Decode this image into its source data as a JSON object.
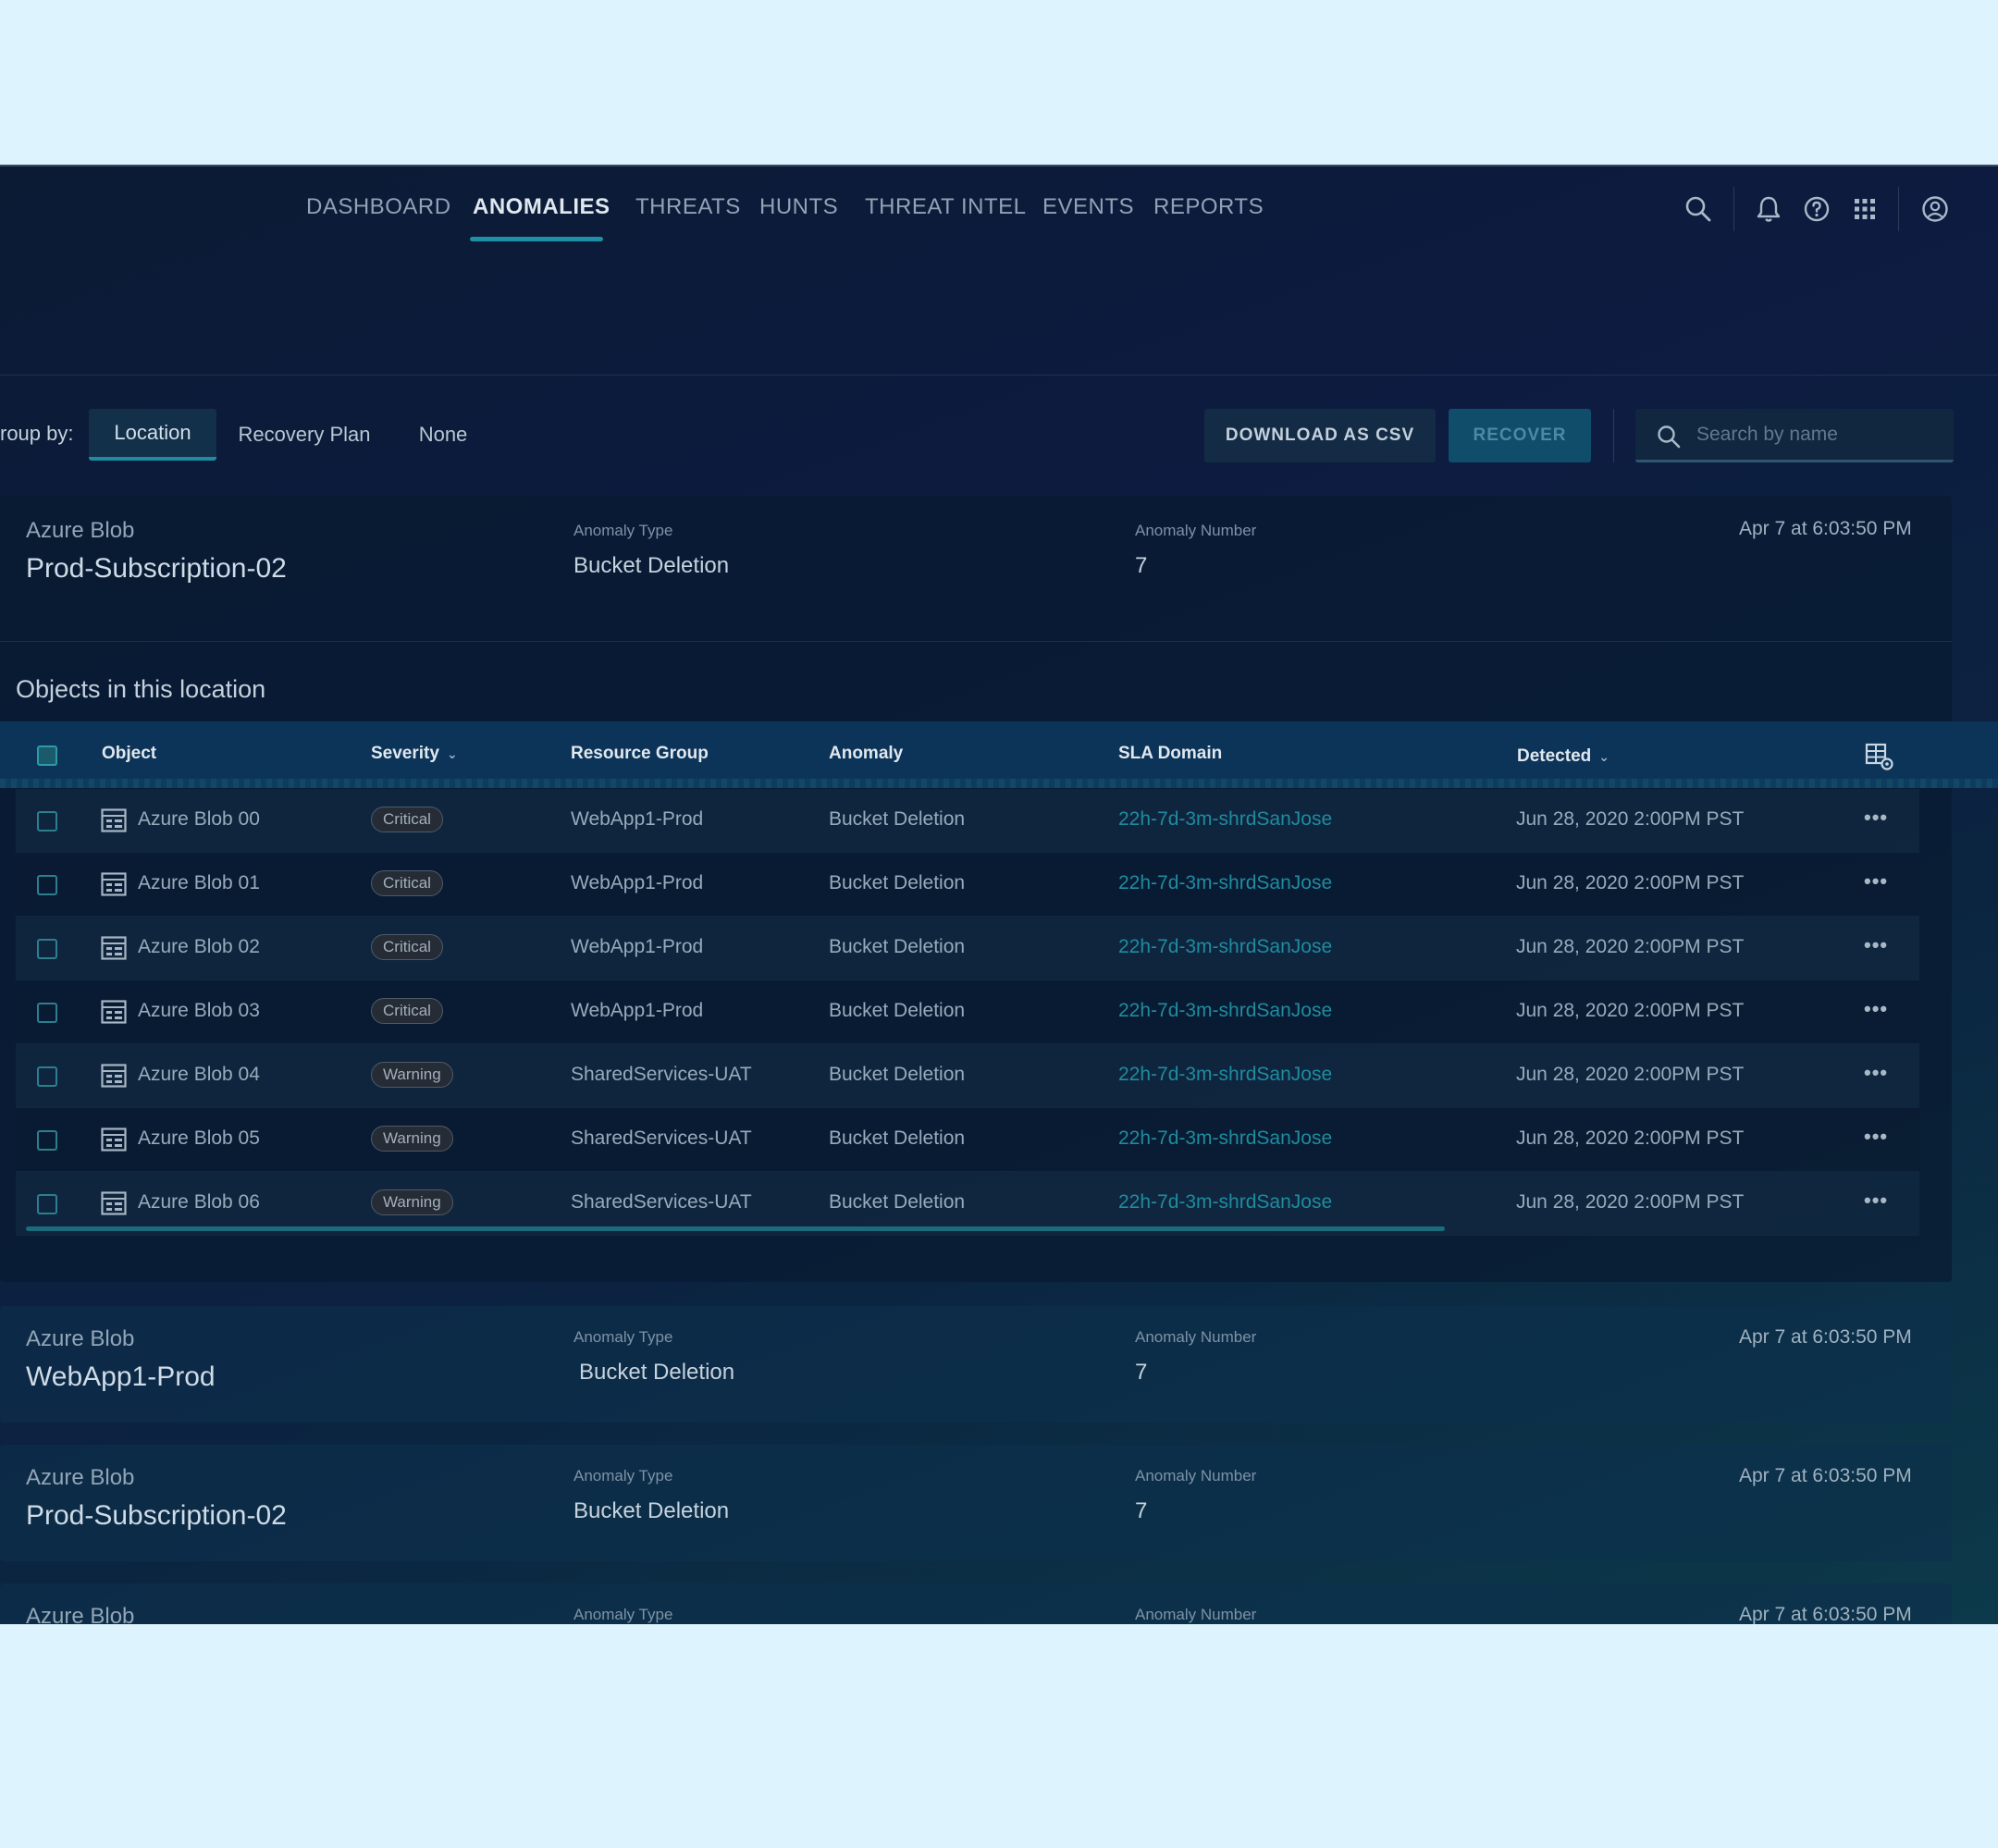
{
  "nav": {
    "tabs": [
      {
        "label": "DASHBOARD"
      },
      {
        "label": "ANOMALIES",
        "active": true
      },
      {
        "label": "THREATS"
      },
      {
        "label": "HUNTS"
      },
      {
        "label": "THREAT INTEL"
      },
      {
        "label": "EVENTS"
      },
      {
        "label": "REPORTS"
      }
    ],
    "icons": [
      "search-icon",
      "bell-icon",
      "help-icon",
      "apps-grid-icon",
      "user-account-icon"
    ]
  },
  "toolbar": {
    "group_by_label": "roup by:",
    "group_by_options": [
      "Location",
      "Recovery Plan",
      "None"
    ],
    "group_by_selected": "Location",
    "download_label": "DOWNLOAD AS CSV",
    "recover_label": "RECOVER",
    "search_placeholder": "Search by name"
  },
  "groups": [
    {
      "type": "Azure Blob",
      "name": "Prod-Subscription-02",
      "anomaly_type_label": "Anomaly Type",
      "anomaly_type": "Bucket Deletion",
      "anomaly_number_label": "Anomaly Number",
      "anomaly_number": "7",
      "date": "Apr 7 at 6:03:50 PM"
    },
    {
      "type": "Azure Blob",
      "name": "WebApp1-Prod",
      "anomaly_type_label": "Anomaly Type",
      "anomaly_type": "Bucket Deletion",
      "anomaly_number_label": "Anomaly Number",
      "anomaly_number": "7",
      "date": "Apr 7 at 6:03:50 PM"
    },
    {
      "type": "Azure Blob",
      "name": "Prod-Subscription-02",
      "anomaly_type_label": "Anomaly Type",
      "anomaly_type": "Bucket Deletion",
      "anomaly_number_label": "Anomaly Number",
      "anomaly_number": "7",
      "date": "Apr 7 at 6:03:50 PM"
    },
    {
      "type": "Azure Blob",
      "name": "",
      "anomaly_type_label": "Anomaly Type",
      "anomaly_type": "",
      "anomaly_number_label": "Anomaly Number",
      "anomaly_number": "",
      "date": "Apr 7 at 6:03:50 PM"
    }
  ],
  "objects": {
    "section_title": "Objects in this location",
    "columns": {
      "object": "Object",
      "severity": "Severity",
      "resource_group": "Resource Group",
      "anomaly": "Anomaly",
      "sla_domain": "SLA Domain",
      "detected": "Detected"
    },
    "rows": [
      {
        "object": "Azure Blob 00",
        "severity": "Critical",
        "resource_group": "WebApp1-Prod",
        "anomaly": "Bucket Deletion",
        "sla": "22h-7d-3m-shrdSanJose",
        "detected": "Jun 28, 2020 2:00PM PST"
      },
      {
        "object": "Azure Blob 01",
        "severity": "Critical",
        "resource_group": "WebApp1-Prod",
        "anomaly": "Bucket Deletion",
        "sla": "22h-7d-3m-shrdSanJose",
        "detected": "Jun 28, 2020 2:00PM PST"
      },
      {
        "object": "Azure Blob 02",
        "severity": "Critical",
        "resource_group": "WebApp1-Prod",
        "anomaly": "Bucket Deletion",
        "sla": "22h-7d-3m-shrdSanJose",
        "detected": "Jun 28, 2020 2:00PM PST"
      },
      {
        "object": "Azure Blob 03",
        "severity": "Critical",
        "resource_group": "WebApp1-Prod",
        "anomaly": "Bucket Deletion",
        "sla": "22h-7d-3m-shrdSanJose",
        "detected": "Jun 28, 2020 2:00PM PST"
      },
      {
        "object": "Azure Blob 04",
        "severity": "Warning",
        "resource_group": "SharedServices-UAT",
        "anomaly": "Bucket Deletion",
        "sla": "22h-7d-3m-shrdSanJose",
        "detected": "Jun 28, 2020 2:00PM PST"
      },
      {
        "object": "Azure Blob 05",
        "severity": "Warning",
        "resource_group": "SharedServices-UAT",
        "anomaly": "Bucket Deletion",
        "sla": "22h-7d-3m-shrdSanJose",
        "detected": "Jun 28, 2020 2:00PM PST"
      },
      {
        "object": "Azure Blob 06",
        "severity": "Warning",
        "resource_group": "SharedServices-UAT",
        "anomaly": "Bucket Deletion",
        "sla": "22h-7d-3m-shrdSanJose",
        "detected": "Jun 28, 2020 2:00PM PST"
      }
    ],
    "more_label": "•••"
  },
  "colors": {
    "accent": "#1f8fa5",
    "link": "#1e8ca0",
    "page_background": "#ddf3fe"
  }
}
